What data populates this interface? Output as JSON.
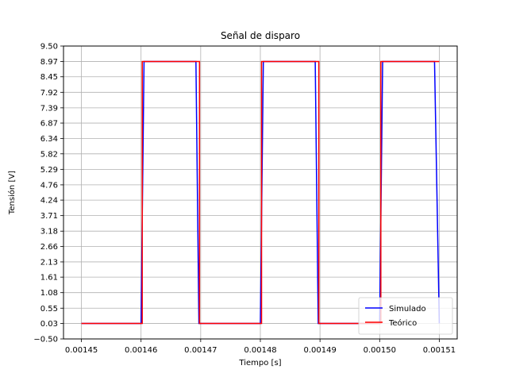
{
  "chart_data": {
    "type": "line",
    "title": "Señal de disparo",
    "xlabel": "Tiempo [s]",
    "ylabel": "Tensión [V]",
    "xlim": [
      0.001447,
      0.001513
    ],
    "ylim": [
      -0.5,
      9.5
    ],
    "xticks": [
      0.00145,
      0.00146,
      0.00147,
      0.00148,
      0.00149,
      0.0015,
      0.00151
    ],
    "xtick_labels": [
      "0.00145",
      "0.00146",
      "0.00147",
      "0.00148",
      "0.00149",
      "0.00150",
      "0.00151"
    ],
    "yticks": [
      -0.5,
      0.03,
      0.55,
      1.08,
      1.61,
      2.13,
      2.66,
      3.18,
      3.71,
      4.24,
      4.76,
      5.29,
      5.82,
      6.34,
      6.87,
      7.39,
      7.92,
      8.45,
      8.97,
      9.5
    ],
    "ytick_labels": [
      "−0.50",
      "0.03",
      "0.55",
      "1.08",
      "1.61",
      "2.13",
      "2.66",
      "3.18",
      "3.71",
      "4.24",
      "4.76",
      "5.29",
      "5.82",
      "6.34",
      "6.87",
      "7.39",
      "7.92",
      "8.45",
      "8.97",
      "9.50"
    ],
    "grid": true,
    "legend_position": "lower-right",
    "series": [
      {
        "name": "Simulado",
        "color": "#0000ff",
        "x": [
          0.00145,
          0.00146,
          0.0014605,
          0.0014692,
          0.0014697,
          0.00148,
          0.0014805,
          0.0014892,
          0.0014897,
          0.0015,
          0.0015005,
          0.0015092,
          0.00151
        ],
        "y": [
          0.03,
          0.03,
          8.97,
          8.97,
          0.03,
          0.03,
          8.97,
          8.97,
          0.03,
          0.03,
          8.97,
          8.97,
          0.03
        ]
      },
      {
        "name": "Teórico",
        "color": "#ff0000",
        "x": [
          0.00145,
          0.0014602,
          0.0014602,
          0.0014698,
          0.0014698,
          0.0014802,
          0.0014802,
          0.0014898,
          0.0014898,
          0.0015002,
          0.0015002,
          0.00151
        ],
        "y": [
          0.03,
          0.03,
          8.97,
          8.97,
          0.03,
          0.03,
          8.97,
          8.97,
          0.03,
          0.03,
          8.97,
          8.97
        ]
      }
    ]
  }
}
